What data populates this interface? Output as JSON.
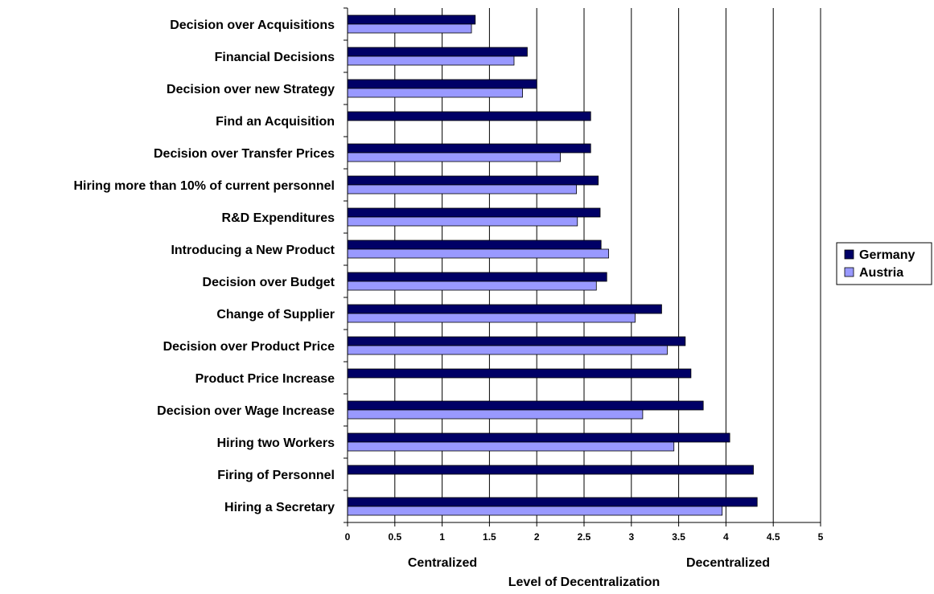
{
  "chart_data": {
    "type": "bar",
    "orientation": "horizontal",
    "categories": [
      "Decision over Acquisitions",
      "Financial Decisions",
      "Decision over new Strategy",
      "Find an Acquisition",
      "Decision over Transfer Prices",
      "Hiring more than 10% of current personnel",
      "R&D Expenditures",
      "Introducing a New Product",
      "Decision over Budget",
      "Change of Supplier",
      "Decision over Product Price",
      "Product Price Increase",
      "Decision over Wage Increase",
      "Hiring two Workers",
      "Firing of Personnel",
      "Hiring a Secretary"
    ],
    "series": [
      {
        "name": "Germany",
        "color": "#000066",
        "values": [
          1.35,
          1.9,
          2.0,
          2.57,
          2.57,
          2.65,
          2.67,
          2.68,
          2.74,
          3.32,
          3.57,
          3.63,
          3.76,
          4.04,
          4.29,
          4.33
        ]
      },
      {
        "name": "Austria",
        "color": "#9999FF",
        "values": [
          1.31,
          1.76,
          1.85,
          null,
          2.25,
          2.42,
          2.43,
          2.76,
          2.63,
          3.04,
          3.38,
          null,
          3.12,
          3.45,
          null,
          3.96
        ]
      }
    ],
    "xlim": [
      0,
      5
    ],
    "xticks": [
      "0",
      "0.5",
      "1",
      "1.5",
      "2",
      "2.5",
      "3",
      "3.5",
      "4",
      "4.5",
      "5"
    ],
    "xlabel": "Level of Decentralization",
    "x_annotations": [
      "Centralized",
      "Decentralized"
    ],
    "grid": "vertical",
    "legend": "right"
  }
}
